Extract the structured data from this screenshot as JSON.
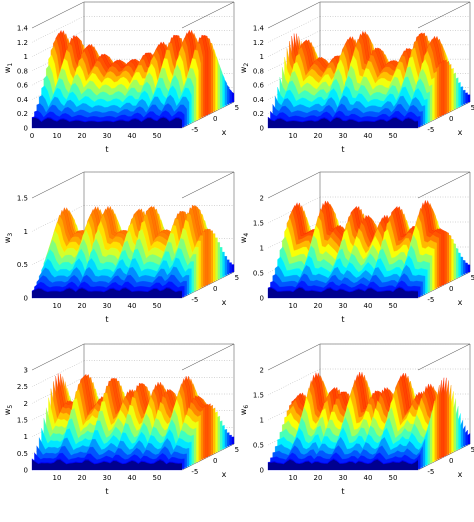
{
  "chart_data": [
    {
      "type": "surface3d",
      "ylabel_sub": "1",
      "xlabel": "t",
      "zlabel": "w",
      "depth_label": "x",
      "t_ticks": [
        "0",
        "10",
        "20",
        "30",
        "40",
        "50"
      ],
      "x_ticks": [
        "-5",
        "0",
        "5"
      ],
      "z_ticks": [
        "0",
        "0.2",
        "0.4",
        "0.6",
        "0.8",
        "1",
        "1.2",
        "1.4"
      ],
      "zlim": [
        0,
        1.4
      ],
      "t_range": [
        0,
        60
      ],
      "x_range": [
        -6,
        6
      ],
      "colormap": "jet"
    },
    {
      "type": "surface3d",
      "ylabel_sub": "2",
      "xlabel": "t",
      "zlabel": "w",
      "depth_label": "x",
      "t_ticks": [
        "10",
        "20",
        "30",
        "40",
        "50"
      ],
      "x_ticks": [
        "-5",
        "0",
        "5"
      ],
      "z_ticks": [
        "0",
        "0.2",
        "0.4",
        "0.6",
        "0.8",
        "1",
        "1.2",
        "1.4"
      ],
      "zlim": [
        0,
        1.4
      ],
      "t_range": [
        0,
        60
      ],
      "x_range": [
        -6,
        6
      ],
      "colormap": "jet"
    },
    {
      "type": "surface3d",
      "ylabel_sub": "3",
      "xlabel": "t",
      "zlabel": "w",
      "depth_label": "x",
      "t_ticks": [
        "10",
        "20",
        "30",
        "40",
        "50"
      ],
      "x_ticks": [
        "-5",
        "0",
        "5"
      ],
      "z_ticks": [
        "0",
        "0.5",
        "1",
        "1.5"
      ],
      "zlim": [
        0,
        1.5
      ],
      "t_range": [
        0,
        60
      ],
      "x_range": [
        -6,
        6
      ],
      "colormap": "jet"
    },
    {
      "type": "surface3d",
      "ylabel_sub": "4",
      "xlabel": "t",
      "zlabel": "w",
      "depth_label": "x",
      "t_ticks": [
        "10",
        "20",
        "30",
        "40",
        "50"
      ],
      "x_ticks": [
        "-5",
        "0",
        "5"
      ],
      "z_ticks": [
        "0",
        "0.5",
        "1",
        "1.5",
        "2"
      ],
      "zlim": [
        0,
        2
      ],
      "t_range": [
        0,
        60
      ],
      "x_range": [
        -6,
        6
      ],
      "colormap": "jet"
    },
    {
      "type": "surface3d",
      "ylabel_sub": "5",
      "xlabel": "t",
      "zlabel": "w",
      "depth_label": "x",
      "t_ticks": [
        "10",
        "20",
        "30",
        "40",
        "50"
      ],
      "x_ticks": [
        "-5",
        "0",
        "5"
      ],
      "z_ticks": [
        "0",
        "0.5",
        "1",
        "1.5",
        "2",
        "2.5",
        "3"
      ],
      "zlim": [
        0,
        3
      ],
      "t_range": [
        0,
        60
      ],
      "x_range": [
        -6,
        6
      ],
      "colormap": "jet"
    },
    {
      "type": "surface3d",
      "ylabel_sub": "6",
      "xlabel": "t",
      "zlabel": "w",
      "depth_label": "x",
      "t_ticks": [
        "10",
        "20",
        "30",
        "40",
        "50"
      ],
      "x_ticks": [
        "-5",
        "0",
        "5"
      ],
      "z_ticks": [
        "0",
        "0.5",
        "1",
        "1.5",
        "2"
      ],
      "zlim": [
        0,
        2
      ],
      "t_range": [
        0,
        60
      ],
      "x_range": [
        -6,
        6
      ],
      "colormap": "jet"
    }
  ]
}
